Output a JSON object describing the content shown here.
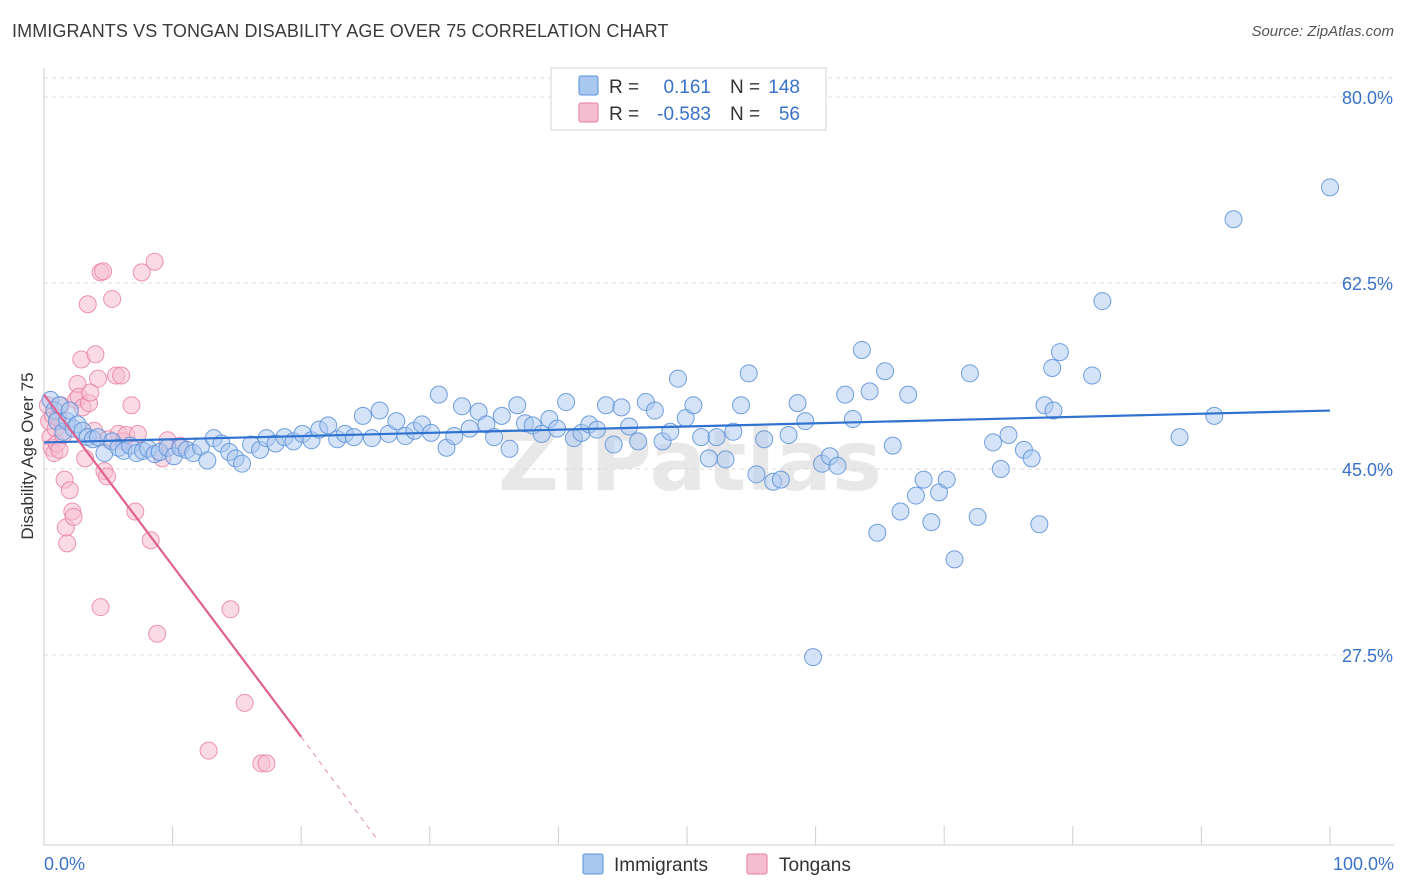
{
  "header": {
    "title": "IMMIGRANTS VS TONGAN DISABILITY AGE OVER 75 CORRELATION CHART",
    "source": "Source: ZipAtlas.com"
  },
  "legend": {
    "rows": [
      {
        "r_label": "R =",
        "r_value": "0.161",
        "n_label": "N =",
        "n_value": "148"
      },
      {
        "r_label": "R =",
        "r_value": "-0.583",
        "n_label": "N =",
        "n_value": "56"
      }
    ],
    "bottom": [
      "Immigrants",
      "Tongans"
    ]
  },
  "watermark": "ZIPatlas",
  "colors": {
    "blue_fill": "#a9c8ef",
    "blue_stroke": "#5a8fd8",
    "blue_line": "#2f72d0",
    "pink_fill": "#f6bdd0",
    "pink_stroke": "#e87aa0",
    "pink_line": "#e0608e",
    "axis_text": "#3a72c8"
  },
  "chart_data": {
    "type": "scatter",
    "title": "IMMIGRANTS VS TONGAN DISABILITY AGE OVER 75 CORRELATION CHART",
    "xlabel": "",
    "ylabel": "Disability Age Over 75",
    "xlim": [
      0,
      100
    ],
    "ylim": [
      10,
      82
    ],
    "x_tick_labels": [
      "0.0%",
      "100.0%"
    ],
    "y_ticks": [
      27.5,
      45.0,
      62.5,
      80.0
    ],
    "y_tick_labels": [
      "27.5%",
      "45.0%",
      "62.5%",
      "80.0%"
    ],
    "grid": "horizontal dashed",
    "legend_position": "top-center",
    "series": [
      {
        "name": "Immigrants",
        "r": 0.161,
        "n": 148,
        "trend": {
          "x": [
            0,
            100
          ],
          "y": [
            47.5,
            50.5
          ]
        },
        "points": [
          [
            0.5,
            51.5
          ],
          [
            0.8,
            50.5
          ],
          [
            1.0,
            49.5
          ],
          [
            1.2,
            51.0
          ],
          [
            1.5,
            48.5
          ],
          [
            1.8,
            49.5
          ],
          [
            2.0,
            50.5
          ],
          [
            2.3,
            48.8
          ],
          [
            2.6,
            49.2
          ],
          [
            3.0,
            48.6
          ],
          [
            3.4,
            48.0
          ],
          [
            3.8,
            47.8
          ],
          [
            4.2,
            48.0
          ],
          [
            4.7,
            46.5
          ],
          [
            5.3,
            47.6
          ],
          [
            5.8,
            47.0
          ],
          [
            6.2,
            46.7
          ],
          [
            6.7,
            47.2
          ],
          [
            7.2,
            46.5
          ],
          [
            7.7,
            46.7
          ],
          [
            8.1,
            46.9
          ],
          [
            8.6,
            46.4
          ],
          [
            9.0,
            46.6
          ],
          [
            9.6,
            47.0
          ],
          [
            10.1,
            46.2
          ],
          [
            10.6,
            47.0
          ],
          [
            11.1,
            46.8
          ],
          [
            11.6,
            46.5
          ],
          [
            12.2,
            47.1
          ],
          [
            12.7,
            45.8
          ],
          [
            13.2,
            47.9
          ],
          [
            13.8,
            47.4
          ],
          [
            14.4,
            46.6
          ],
          [
            14.9,
            46.0
          ],
          [
            15.4,
            45.5
          ],
          [
            16.1,
            47.3
          ],
          [
            16.8,
            46.8
          ],
          [
            17.3,
            47.9
          ],
          [
            18.0,
            47.4
          ],
          [
            18.7,
            48.0
          ],
          [
            19.4,
            47.6
          ],
          [
            20.1,
            48.3
          ],
          [
            20.8,
            47.7
          ],
          [
            21.4,
            48.7
          ],
          [
            22.1,
            49.1
          ],
          [
            22.8,
            47.8
          ],
          [
            23.4,
            48.3
          ],
          [
            24.1,
            48.0
          ],
          [
            24.8,
            50.0
          ],
          [
            25.5,
            47.9
          ],
          [
            26.1,
            50.5
          ],
          [
            26.8,
            48.3
          ],
          [
            27.4,
            49.5
          ],
          [
            28.1,
            48.1
          ],
          [
            28.8,
            48.6
          ],
          [
            29.4,
            49.2
          ],
          [
            30.1,
            48.4
          ],
          [
            30.7,
            52.0
          ],
          [
            31.3,
            47.0
          ],
          [
            31.9,
            48.1
          ],
          [
            32.5,
            50.9
          ],
          [
            33.1,
            48.8
          ],
          [
            33.8,
            50.4
          ],
          [
            34.4,
            49.2
          ],
          [
            35.0,
            48.0
          ],
          [
            35.6,
            50.0
          ],
          [
            36.2,
            46.9
          ],
          [
            36.8,
            51.0
          ],
          [
            37.4,
            49.3
          ],
          [
            38.0,
            49.1
          ],
          [
            38.7,
            48.3
          ],
          [
            39.3,
            49.7
          ],
          [
            39.9,
            48.8
          ],
          [
            40.6,
            51.3
          ],
          [
            41.2,
            47.9
          ],
          [
            41.8,
            48.4
          ],
          [
            42.4,
            49.2
          ],
          [
            43.0,
            48.7
          ],
          [
            43.7,
            51.0
          ],
          [
            44.3,
            47.3
          ],
          [
            44.9,
            50.8
          ],
          [
            45.5,
            49.0
          ],
          [
            46.2,
            47.6
          ],
          [
            46.8,
            51.3
          ],
          [
            47.5,
            50.5
          ],
          [
            48.1,
            47.6
          ],
          [
            48.7,
            48.5
          ],
          [
            49.3,
            53.5
          ],
          [
            49.9,
            49.8
          ],
          [
            50.5,
            51.0
          ],
          [
            51.1,
            48.0
          ],
          [
            51.7,
            46.0
          ],
          [
            52.3,
            48.0
          ],
          [
            53.0,
            45.9
          ],
          [
            53.6,
            48.5
          ],
          [
            54.2,
            51.0
          ],
          [
            54.8,
            54.0
          ],
          [
            55.4,
            44.5
          ],
          [
            56.0,
            47.8
          ],
          [
            56.7,
            43.8
          ],
          [
            57.3,
            44.0
          ],
          [
            57.9,
            48.2
          ],
          [
            58.6,
            51.2
          ],
          [
            59.2,
            49.5
          ],
          [
            59.8,
            27.3
          ],
          [
            60.5,
            45.5
          ],
          [
            61.1,
            46.2
          ],
          [
            61.7,
            45.3
          ],
          [
            62.3,
            52.0
          ],
          [
            62.9,
            49.7
          ],
          [
            63.6,
            56.2
          ],
          [
            64.2,
            52.3
          ],
          [
            64.8,
            39.0
          ],
          [
            65.4,
            54.2
          ],
          [
            66.0,
            47.2
          ],
          [
            66.6,
            41.0
          ],
          [
            67.2,
            52.0
          ],
          [
            67.8,
            42.5
          ],
          [
            68.4,
            44.0
          ],
          [
            69.0,
            40.0
          ],
          [
            69.6,
            42.8
          ],
          [
            70.2,
            44.0
          ],
          [
            70.8,
            36.5
          ],
          [
            72.0,
            54.0
          ],
          [
            72.6,
            40.5
          ],
          [
            73.8,
            47.5
          ],
          [
            74.4,
            45.0
          ],
          [
            75.0,
            48.2
          ],
          [
            76.2,
            46.8
          ],
          [
            76.8,
            46.0
          ],
          [
            77.4,
            39.8
          ],
          [
            77.8,
            51.0
          ],
          [
            78.4,
            54.5
          ],
          [
            78.5,
            50.5
          ],
          [
            79.0,
            56.0
          ],
          [
            81.5,
            53.8
          ],
          [
            82.3,
            60.8
          ],
          [
            88.3,
            48.0
          ],
          [
            91.0,
            50.0
          ],
          [
            92.5,
            68.5
          ],
          [
            100.0,
            71.5
          ]
        ]
      },
      {
        "name": "Tongans",
        "r": -0.583,
        "n": 56,
        "trend": {
          "x": [
            0,
            20
          ],
          "y": [
            52.0,
            19.8
          ]
        },
        "trend_dashed": {
          "x": [
            20,
            26
          ],
          "y": [
            19.8,
            10.0
          ]
        },
        "points": [
          [
            0.3,
            51.0
          ],
          [
            0.4,
            49.5
          ],
          [
            0.5,
            48.0
          ],
          [
            0.6,
            47.0
          ],
          [
            0.7,
            50.0
          ],
          [
            0.8,
            46.5
          ],
          [
            0.9,
            48.8
          ],
          [
            1.0,
            47.4
          ],
          [
            1.1,
            49.8
          ],
          [
            1.2,
            46.8
          ],
          [
            1.3,
            51.0
          ],
          [
            1.5,
            48.2
          ],
          [
            1.6,
            44.0
          ],
          [
            1.7,
            39.5
          ],
          [
            1.8,
            38.0
          ],
          [
            2.0,
            43.0
          ],
          [
            2.2,
            41.0
          ],
          [
            2.3,
            40.5
          ],
          [
            2.5,
            51.5
          ],
          [
            2.6,
            53.0
          ],
          [
            2.7,
            51.8
          ],
          [
            2.9,
            55.3
          ],
          [
            3.0,
            50.8
          ],
          [
            3.2,
            46.0
          ],
          [
            3.4,
            60.5
          ],
          [
            3.5,
            51.2
          ],
          [
            3.6,
            52.2
          ],
          [
            3.9,
            48.6
          ],
          [
            4.0,
            55.8
          ],
          [
            4.2,
            53.5
          ],
          [
            4.4,
            63.5
          ],
          [
            4.6,
            63.6
          ],
          [
            4.7,
            44.8
          ],
          [
            4.9,
            44.3
          ],
          [
            4.4,
            32.0
          ],
          [
            5.0,
            47.8
          ],
          [
            5.3,
            61.0
          ],
          [
            5.6,
            53.8
          ],
          [
            5.8,
            48.3
          ],
          [
            6.0,
            53.8
          ],
          [
            6.2,
            47.6
          ],
          [
            6.4,
            48.2
          ],
          [
            6.8,
            51.0
          ],
          [
            7.1,
            41.0
          ],
          [
            7.3,
            48.3
          ],
          [
            7.6,
            63.5
          ],
          [
            8.3,
            38.3
          ],
          [
            8.6,
            64.5
          ],
          [
            8.8,
            29.5
          ],
          [
            9.2,
            46.0
          ],
          [
            9.6,
            47.7
          ],
          [
            10.6,
            47.2
          ],
          [
            12.8,
            18.5
          ],
          [
            14.5,
            31.8
          ],
          [
            15.6,
            23.0
          ],
          [
            16.9,
            17.3
          ],
          [
            17.3,
            17.3
          ]
        ]
      }
    ]
  }
}
